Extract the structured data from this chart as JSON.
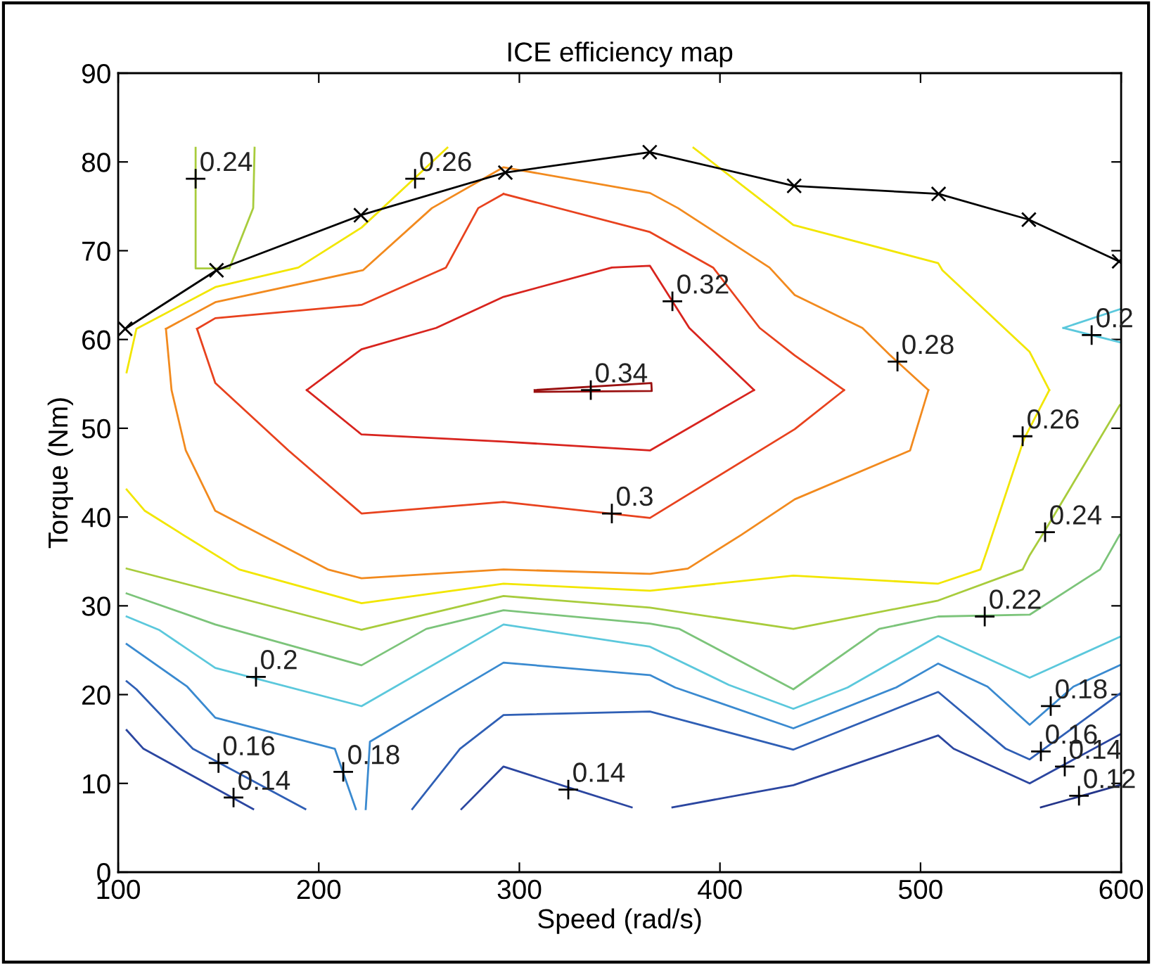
{
  "chart_data": {
    "type": "line",
    "title": "ICE efficiency map",
    "xlabel": "Speed (rad/s)",
    "ylabel": "Torque (Nm)",
    "xlim": [
      100,
      600
    ],
    "xticks": [
      100,
      200,
      300,
      400,
      500,
      600
    ],
    "ylim": [
      0,
      90
    ],
    "yticks": [
      0,
      10,
      20,
      30,
      40,
      50,
      60,
      70,
      80,
      90
    ],
    "grid": false,
    "legend": false,
    "marker": "none",
    "line_style": "solid",
    "series": [
      {
        "color": "#9a1010",
        "x": [
          307.6,
          365.8,
          366.0,
          307.6
        ],
        "values": [
          54.3,
          55.1,
          54.2,
          54.1
        ]
      },
      {
        "color": "#d8241e",
        "x": [
          194.0,
          221.3,
          258.5,
          292.1,
          346.1,
          365.1,
          384.7,
          417.0
        ],
        "values": [
          54.3,
          58.9,
          61.3,
          64.8,
          68.1,
          68.3,
          61.3,
          54.3
        ]
      },
      {
        "color": "#d8241e",
        "x": [
          194.0,
          221.3,
          292.1,
          365.1,
          417.0
        ],
        "values": [
          54.3,
          49.3,
          48.5,
          47.5,
          54.3
        ]
      },
      {
        "color": "#e8421e",
        "x": [
          139.3,
          148.4,
          184.9,
          221.3,
          292.1,
          365.1,
          437.3,
          461.9
        ],
        "values": [
          61.2,
          55.1,
          47.5,
          40.4,
          41.7,
          39.9,
          49.9,
          54.3
        ]
      },
      {
        "color": "#e8421e",
        "x": [
          139.3,
          148.4,
          221.3,
          263.4,
          279.5,
          292.1
        ],
        "values": [
          61.2,
          62.4,
          63.9,
          68.1,
          74.8,
          76.4
        ]
      },
      {
        "color": "#e8421e",
        "x": [
          292.1,
          365.1,
          396.6,
          419.8,
          437.3,
          461.9
        ],
        "values": [
          76.4,
          72.1,
          68.1,
          61.3,
          58.2,
          54.3
        ]
      },
      {
        "color": "#f28a1e",
        "x": [
          123.8,
          148.4,
          222.0,
          256.4,
          292.1,
          365.1,
          379.1,
          424.7,
          437.3,
          471.0,
          485.0,
          503.9
        ],
        "values": [
          61.2,
          64.2,
          67.8,
          74.8,
          79.4,
          76.5,
          74.8,
          68.1,
          65.0,
          61.3,
          58.2,
          54.3
        ]
      },
      {
        "color": "#f28a1e",
        "x": [
          123.8,
          126.6,
          133.7,
          148.4,
          184.9,
          204.5,
          221.3,
          292.1,
          365.1,
          384.0,
          410.7,
          437.3,
          494.8,
          503.9
        ],
        "values": [
          61.2,
          54.3,
          47.5,
          40.7,
          36.4,
          34.1,
          33.1,
          34.1,
          33.6,
          34.2,
          38.0,
          42.0,
          47.5,
          54.3
        ]
      },
      {
        "color": "#f2e600",
        "x": [
          104.2,
          109.1,
          148.4,
          189.8,
          221.3,
          264.1
        ],
        "values": [
          56.3,
          61.2,
          65.9,
          68.1,
          72.6,
          81.6
        ]
      },
      {
        "color": "#f2e600",
        "x": [
          386.8,
          436.6,
          508.8,
          510.9,
          554.4,
          564.2
        ],
        "values": [
          81.6,
          72.9,
          68.6,
          67.8,
          58.6,
          54.3
        ]
      },
      {
        "color": "#f2e600",
        "x": [
          564.2,
          551.6,
          533.4,
          529.9,
          508.8,
          436.6,
          365.1,
          292.1,
          221.3,
          160.3,
          132.3,
          113.3,
          104.2
        ],
        "values": [
          54.3,
          48.8,
          36.4,
          34.1,
          32.5,
          33.4,
          31.7,
          32.5,
          30.3,
          34.1,
          38.0,
          40.7,
          43.1
        ]
      },
      {
        "color": "#a8cc3c",
        "x": [
          138.6,
          138.6,
          155.4,
          167.3,
          168.0
        ],
        "values": [
          81.6,
          68.0,
          68.0,
          74.8,
          81.6
        ]
      },
      {
        "color": "#a8cc3c",
        "x": [
          599.3,
          562.1,
          554.4,
          550.9,
          508.8,
          436.6,
          365.1,
          292.1,
          221.3,
          104.2
        ],
        "values": [
          52.6,
          38.5,
          35.7,
          34.1,
          30.6,
          27.4,
          29.8,
          31.1,
          27.3,
          34.2
        ]
      },
      {
        "color": "#7cc47a",
        "x": [
          599.3,
          589.5,
          554.4,
          508.8,
          479.4,
          436.6,
          379.8,
          365.1,
          292.1,
          253.6,
          221.3,
          148.4,
          104.2
        ],
        "values": [
          38.0,
          34.1,
          29.0,
          28.8,
          27.4,
          20.6,
          27.4,
          28.0,
          29.5,
          27.4,
          23.3,
          27.9,
          31.4
        ]
      },
      {
        "color": "#5bc8dc",
        "x": [
          599.3,
          554.4,
          508.8,
          463.6,
          436.6,
          404.4,
          365.1,
          292.1,
          221.3,
          148.4,
          120.3,
          104.2
        ],
        "values": [
          26.5,
          21.9,
          26.6,
          20.8,
          18.4,
          21.1,
          25.4,
          27.9,
          18.7,
          23.0,
          27.3,
          28.8
        ]
      },
      {
        "color": "#5bc8dc",
        "x": [
          599.3,
          571.2
        ],
        "values": [
          63.4,
          61.3
        ]
      },
      {
        "color": "#5bc8dc",
        "x": [
          571.2,
          599.3
        ],
        "values": [
          61.3,
          59.7
        ]
      },
      {
        "color": "#3a8ad0",
        "x": [
          104.2,
          134.4,
          148.4,
          208.0,
          218.5
        ],
        "values": [
          25.7,
          20.9,
          17.4,
          13.9,
          7.1
        ]
      },
      {
        "color": "#3a8ad0",
        "x": [
          223.4,
          225.5,
          292.1,
          365.1,
          377.7,
          436.6,
          487.8,
          508.8,
          533.4,
          554.4,
          576.2,
          599.3
        ],
        "values": [
          7.1,
          14.7,
          23.6,
          22.2,
          20.8,
          16.2,
          20.8,
          23.5,
          20.9,
          16.6,
          20.9,
          23.3
        ]
      },
      {
        "color": "#2f5fb5",
        "x": [
          104.2,
          109.1,
          137.2,
          193.3
        ],
        "values": [
          21.5,
          20.6,
          13.9,
          7.1
        ]
      },
      {
        "color": "#2f5fb5",
        "x": [
          246.6,
          270.4,
          292.1,
          365.1,
          436.6,
          508.8,
          542.5,
          554.4,
          599.3
        ],
        "values": [
          7.1,
          13.9,
          17.7,
          18.1,
          13.8,
          20.3,
          13.9,
          12.7,
          20.1
        ]
      },
      {
        "color": "#2b46a0",
        "x": [
          104.2,
          112.6,
          167.3
        ],
        "values": [
          16.0,
          13.9,
          7.1
        ]
      },
      {
        "color": "#2b46a0",
        "x": [
          271.1,
          292.1,
          325.1,
          356.0
        ],
        "values": [
          7.1,
          11.9,
          9.5,
          7.3
        ]
      },
      {
        "color": "#2b46a0",
        "x": [
          376.3,
          436.6,
          508.8,
          516.5,
          554.4,
          599.3
        ],
        "values": [
          7.3,
          9.8,
          15.4,
          13.9,
          10.0,
          15.5
        ]
      },
      {
        "color": "#24358a",
        "x": [
          560.0,
          599.3
        ],
        "values": [
          7.3,
          9.8
        ]
      },
      {
        "color": "#000000",
        "marker": "cross",
        "x": [
          103.5,
          149,
          221,
          293,
          365,
          437,
          509,
          554,
          599
        ],
        "values": [
          61.2,
          67.8,
          74.0,
          78.8,
          81.1,
          77.3,
          76.4,
          73.5,
          68.8
        ]
      }
    ],
    "annotations": [
      {
        "text": "0.24",
        "x": 138.6,
        "y": 78.1
      },
      {
        "text": "0.26",
        "x": 248.0,
        "y": 78.1
      },
      {
        "text": "0.34",
        "x": 335.6,
        "y": 54.3
      },
      {
        "text": "0.32",
        "x": 376.3,
        "y": 64.3
      },
      {
        "text": "0.3",
        "x": 346.1,
        "y": 40.4
      },
      {
        "text": "0.28",
        "x": 488.5,
        "y": 57.5
      },
      {
        "text": "0.2",
        "x": 585.3,
        "y": 60.5
      },
      {
        "text": "0.26",
        "x": 550.9,
        "y": 49.1
      },
      {
        "text": "0.24",
        "x": 562.1,
        "y": 38.3
      },
      {
        "text": "0.22",
        "x": 532.0,
        "y": 28.8
      },
      {
        "text": "0.2",
        "x": 168.7,
        "y": 22.0
      },
      {
        "text": "0.18",
        "x": 564.9,
        "y": 18.7
      },
      {
        "text": "0.18",
        "x": 212.2,
        "y": 11.3
      },
      {
        "text": "0.16",
        "x": 560.0,
        "y": 13.6
      },
      {
        "text": "0.14",
        "x": 571.9,
        "y": 11.9
      },
      {
        "text": "0.12",
        "x": 579.0,
        "y": 8.6
      },
      {
        "text": "0.14",
        "x": 157.5,
        "y": 8.4
      },
      {
        "text": "0.16",
        "x": 150.0,
        "y": 12.3
      },
      {
        "text": "0.14",
        "x": 324.4,
        "y": 9.3
      }
    ]
  }
}
